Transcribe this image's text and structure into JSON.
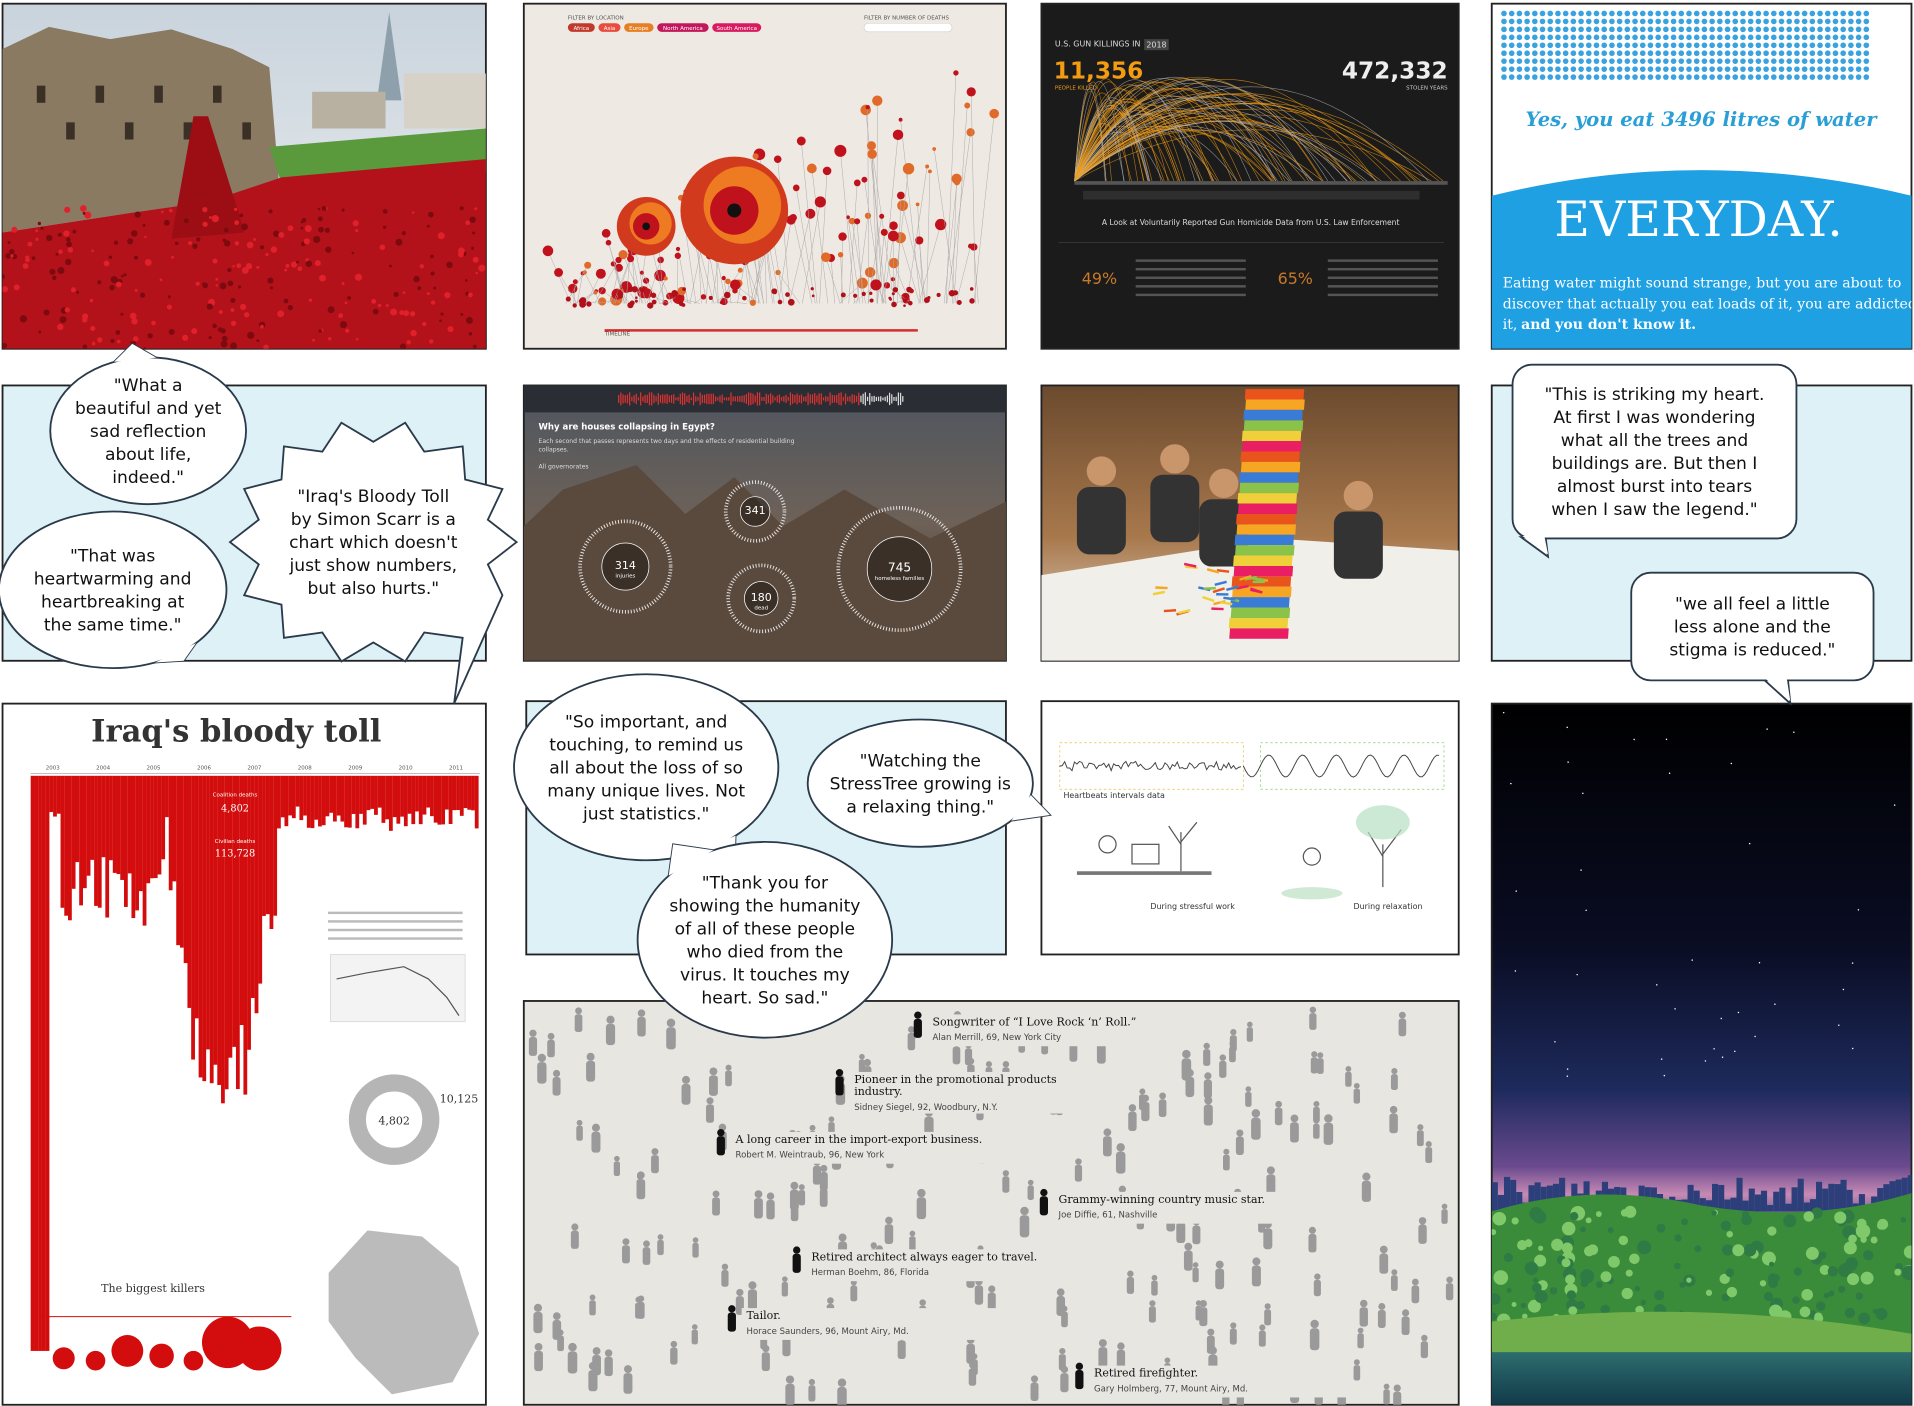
{
  "bubbles": [
    {
      "lines": [
        "\"What a",
        "beautiful and yet",
        "sad reflection",
        "about life,",
        "indeed.\""
      ]
    },
    {
      "lines": [
        "\"That was",
        "heartwarming and",
        "heartbreaking at",
        "the same time.\""
      ]
    },
    {
      "lines": [
        "\"Iraq's Bloody Toll",
        "by Simon Scarr is a",
        "chart which doesn't",
        "just show numbers,",
        "but also hurts.\""
      ]
    },
    {
      "lines": [
        "\"So important, and",
        "touching, to remind us",
        "all about the loss of so",
        "many unique lives. Not",
        "just statistics.\""
      ]
    },
    {
      "lines": [
        "\"Watching the",
        "StressTree growing is",
        "a relaxing thing.\""
      ]
    },
    {
      "lines": [
        "\"Thank you for",
        "showing the humanity",
        "of all of these people",
        "who died from the",
        "virus. It touches my",
        "heart. So sad.\""
      ]
    },
    {
      "lines": [
        "\"This is striking my heart.",
        "At first I was wondering",
        "what all the trees and",
        "buildings are. But then I",
        "almost burst into tears",
        "when I saw the legend.\""
      ]
    },
    {
      "lines": [
        "\"we all feel a little",
        "less alone and the",
        "stigma is reduced.\""
      ]
    }
  ],
  "poppies": {
    "filter_location": "FILTER BY LOCATION",
    "regions": [
      "Africa",
      "Asia",
      "Europe",
      "North America",
      "South America"
    ],
    "filter_deaths": "FILTER BY NUMBER OF DEATHS",
    "timeline": "TIMELINE"
  },
  "guns": {
    "title": "U.S. GUN KILLINGS IN",
    "year": "2018",
    "killed": "11,356",
    "killed_label": "PEOPLE KILLED",
    "stolen": "472,332",
    "stolen_label": "STOLEN YEARS",
    "subtitle": "A Look at Voluntarily Reported Gun Homicide Data from U.S. Law Enforcement",
    "stats": [
      "49%",
      "65%"
    ]
  },
  "water": {
    "headline": "Yes, you eat 3496 litres of water",
    "big": "EVERYDAY.",
    "body": [
      "Eating water might sound strange, but you are about to",
      "discover that actually you eat loads of it, you are addicted to",
      "it,"
    ],
    "body_bold": "and you don't know it."
  },
  "egypt": {
    "question": "Why are houses collapsing in Egypt?",
    "description": [
      "Each second that passes represents two days and the effects of residential building",
      "collapses."
    ],
    "filter": "All governorates",
    "circles": [
      {
        "value": "341"
      },
      {
        "value": "314",
        "label": "injuries"
      },
      {
        "value": "180",
        "label": "dead"
      },
      {
        "value": "745",
        "label": "homeless families"
      }
    ]
  },
  "iraq": {
    "title": "Iraq's bloody toll",
    "years": [
      "2003",
      "2004",
      "2005",
      "2006",
      "2007",
      "2008",
      "2009",
      "2010",
      "2011"
    ],
    "coalition_label": "Coalition deaths",
    "coalition_value": "4,802",
    "civilian_label": "Civilian deaths",
    "civilian_value": "113,728",
    "biggest_killers": "The biggest killers",
    "donut_value": "4,802",
    "security_value": "10,125"
  },
  "stresstree": {
    "data_label": "Heartbeats intervals data",
    "stress_label": "During stressful work",
    "relax_label": "During relaxation"
  },
  "nyt": {
    "people": [
      {
        "desc": [
          "Songwriter of “I Love Rock ‘n’ Roll.”"
        ],
        "name": "Alan Merrill, 69, New York City"
      },
      {
        "desc": [
          "Pioneer in the promotional products",
          "industry."
        ],
        "name": "Sidney Siegel, 92, Woodbury, N.Y."
      },
      {
        "desc": [
          "A long career in the import-export business."
        ],
        "name": "Robert M. Weintraub, 96, New York"
      },
      {
        "desc": [
          "Grammy-winning country music star."
        ],
        "name": "Joe Diffie, 61, Nashville"
      },
      {
        "desc": [
          "Retired architect always eager to travel."
        ],
        "name": "Herman Boehm, 86, Florida"
      },
      {
        "desc": [
          "Tailor."
        ],
        "name": "Horace Saunders, 96, Mount Airy, Md."
      },
      {
        "desc": [
          "Retired firefighter."
        ],
        "name": "Gary Holmberg, 77, Mount Airy, Md."
      }
    ]
  }
}
